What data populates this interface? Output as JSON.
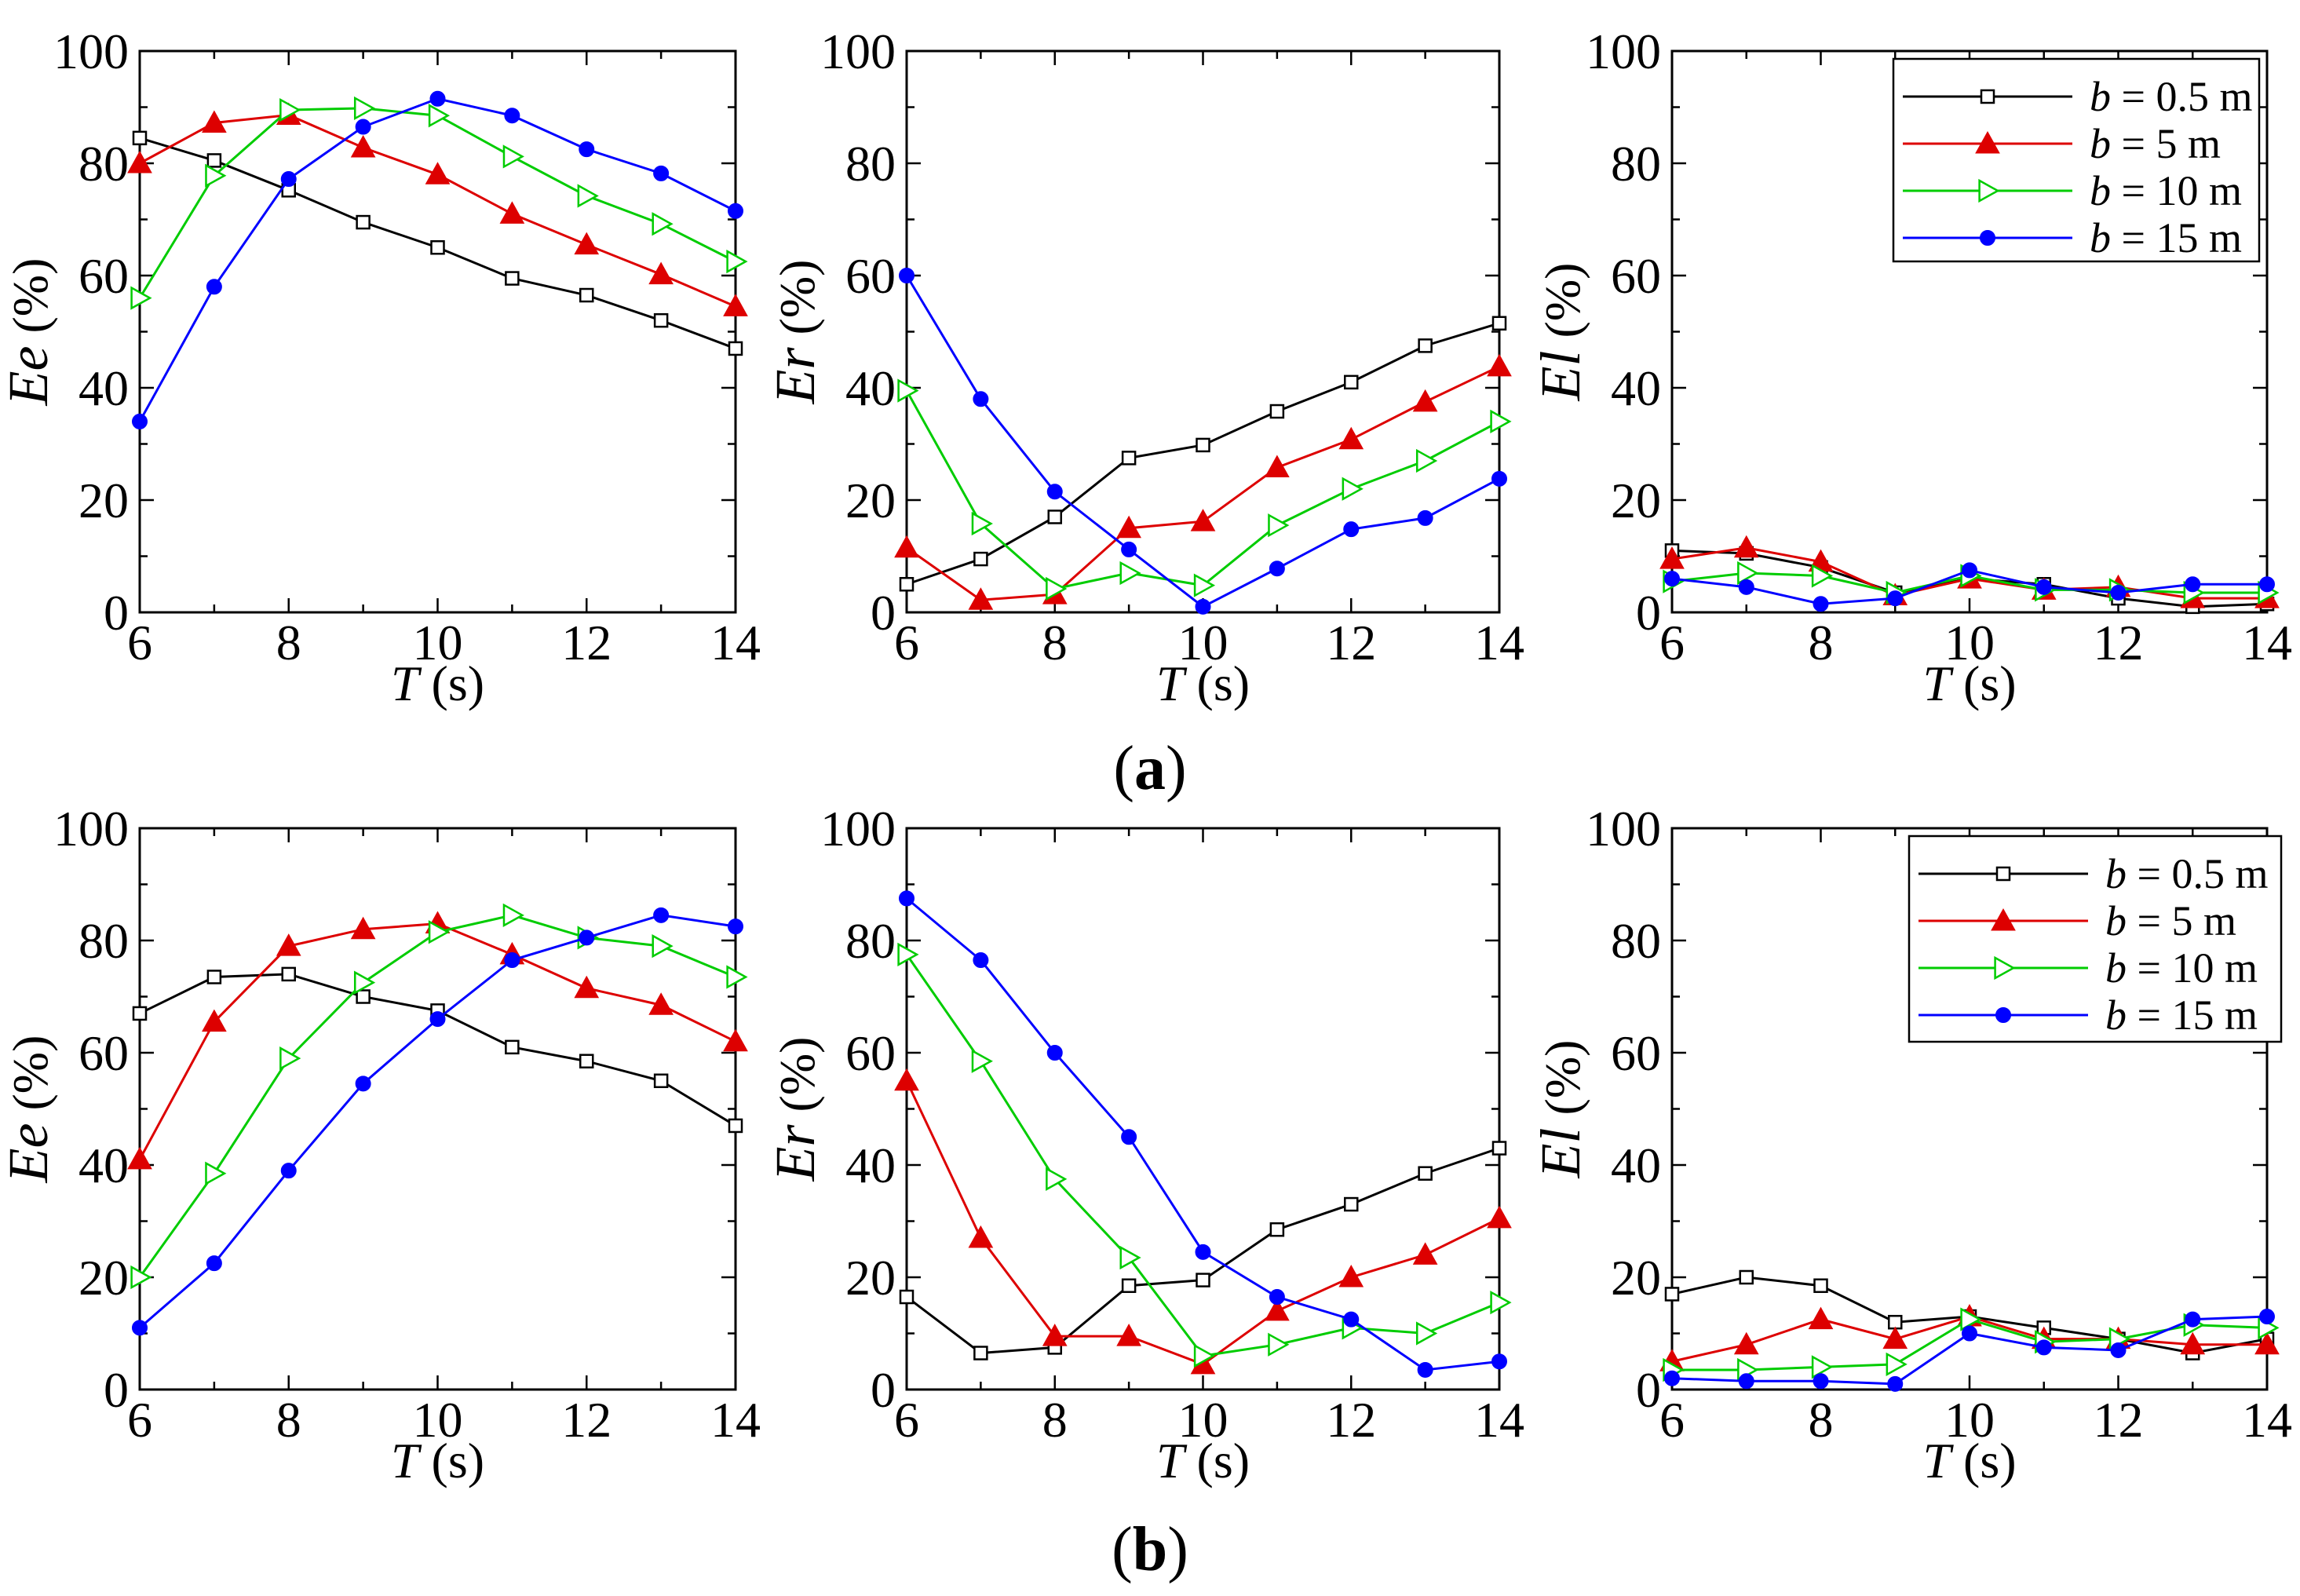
{
  "chart_data": [
    {
      "type": "line",
      "group": "a",
      "title": "",
      "xlabel_var": "T",
      "xlabel_unit": " (s)",
      "ylabel_var": "Ee",
      "ylabel_unit": " (%)",
      "xlim": [
        6,
        14
      ],
      "ylim": [
        0,
        100
      ],
      "x": [
        6,
        7,
        8,
        9,
        10,
        11,
        12,
        13,
        14
      ],
      "legend": false,
      "series": [
        {
          "name": "b = 0.5 m",
          "values": [
            84.5,
            80.5,
            75.2,
            69.5,
            65.0,
            59.5,
            56.5,
            52.0,
            47.0
          ]
        },
        {
          "name": "b = 5 m",
          "values": [
            80.0,
            87.2,
            88.6,
            82.8,
            78.0,
            71.0,
            65.5,
            60.2,
            54.5
          ]
        },
        {
          "name": "b = 10 m",
          "values": [
            56.0,
            77.8,
            89.5,
            89.8,
            88.5,
            81.2,
            74.2,
            69.2,
            62.5
          ]
        },
        {
          "name": "b = 15 m",
          "values": [
            34.0,
            58.0,
            77.2,
            86.5,
            91.5,
            88.5,
            82.5,
            78.2,
            71.5
          ]
        }
      ]
    },
    {
      "type": "line",
      "group": "a",
      "title": "",
      "xlabel_var": "T",
      "xlabel_unit": " (s)",
      "ylabel_var": "Er",
      "ylabel_unit": " (%)",
      "xlim": [
        6,
        14
      ],
      "ylim": [
        0,
        100
      ],
      "x": [
        6,
        7,
        8,
        9,
        10,
        11,
        12,
        13,
        14
      ],
      "legend": false,
      "series": [
        {
          "name": "b = 0.5 m",
          "values": [
            5.0,
            9.5,
            17.0,
            27.5,
            29.8,
            35.8,
            41.0,
            47.5,
            51.5
          ]
        },
        {
          "name": "b = 5 m",
          "values": [
            11.5,
            2.2,
            3.2,
            15.0,
            16.2,
            25.8,
            30.8,
            37.5,
            43.8
          ]
        },
        {
          "name": "b = 10 m",
          "values": [
            39.5,
            15.8,
            4.2,
            7.0,
            4.8,
            15.5,
            22.0,
            27.0,
            34.0
          ]
        },
        {
          "name": "b = 15 m",
          "values": [
            60.0,
            38.0,
            21.5,
            11.2,
            1.0,
            7.8,
            14.8,
            16.8,
            23.8
          ]
        }
      ]
    },
    {
      "type": "line",
      "group": "a",
      "title": "",
      "xlabel_var": "T",
      "xlabel_unit": " (s)",
      "ylabel_var": "El",
      "ylabel_unit": " (%)",
      "xlim": [
        6,
        14
      ],
      "ylim": [
        0,
        100
      ],
      "x": [
        6,
        7,
        8,
        9,
        10,
        11,
        12,
        13,
        14
      ],
      "legend": true,
      "series": [
        {
          "name": "b = 0.5 m",
          "values": [
            11.0,
            10.5,
            8.0,
            3.5,
            6.0,
            5.0,
            2.5,
            1.0,
            1.5
          ]
        },
        {
          "name": "b = 5 m",
          "values": [
            9.5,
            11.5,
            9.0,
            3.0,
            6.0,
            4.0,
            4.5,
            2.5,
            2.5
          ]
        },
        {
          "name": "b = 10 m",
          "values": [
            5.5,
            7.0,
            6.5,
            3.5,
            6.5,
            4.0,
            4.0,
            3.5,
            3.5
          ]
        },
        {
          "name": "b = 15 m",
          "values": [
            6.0,
            4.5,
            1.5,
            2.5,
            7.5,
            4.5,
            3.5,
            5.0,
            5.0
          ]
        }
      ]
    },
    {
      "type": "line",
      "group": "b",
      "title": "",
      "xlabel_var": "T",
      "xlabel_unit": " (s)",
      "ylabel_var": "Ee",
      "ylabel_unit": " (%)",
      "xlim": [
        6,
        14
      ],
      "ylim": [
        0,
        100
      ],
      "x": [
        6,
        7,
        8,
        9,
        10,
        11,
        12,
        13,
        14
      ],
      "legend": false,
      "series": [
        {
          "name": "b = 0.5 m",
          "values": [
            67.0,
            73.5,
            74.0,
            70.0,
            67.5,
            61.0,
            58.5,
            55.0,
            47.0
          ]
        },
        {
          "name": "b = 5 m",
          "values": [
            41.0,
            65.5,
            79.0,
            82.0,
            83.0,
            77.5,
            71.5,
            68.5,
            62.0
          ]
        },
        {
          "name": "b = 10 m",
          "values": [
            20.0,
            38.5,
            59.0,
            72.5,
            81.5,
            84.5,
            80.5,
            79.0,
            73.5
          ]
        },
        {
          "name": "b = 15 m",
          "values": [
            11.0,
            22.5,
            39.0,
            54.5,
            66.0,
            76.5,
            80.5,
            84.5,
            82.5
          ]
        }
      ]
    },
    {
      "type": "line",
      "group": "b",
      "title": "",
      "xlabel_var": "T",
      "xlabel_unit": " (s)",
      "ylabel_var": "Er",
      "ylabel_unit": " (%)",
      "xlim": [
        6,
        14
      ],
      "ylim": [
        0,
        100
      ],
      "x": [
        6,
        7,
        8,
        9,
        10,
        11,
        12,
        13,
        14
      ],
      "legend": false,
      "series": [
        {
          "name": "b = 0.5 m",
          "values": [
            16.5,
            6.5,
            7.5,
            18.5,
            19.5,
            28.5,
            33.0,
            38.5,
            43.0
          ]
        },
        {
          "name": "b = 5 m",
          "values": [
            55.0,
            27.0,
            9.5,
            9.5,
            4.5,
            14.0,
            20.0,
            24.0,
            30.5
          ]
        },
        {
          "name": "b = 10 m",
          "values": [
            77.5,
            58.5,
            37.5,
            23.5,
            6.0,
            8.0,
            11.0,
            10.0,
            15.5
          ]
        },
        {
          "name": "b = 15 m",
          "values": [
            87.5,
            76.5,
            60.0,
            45.0,
            24.5,
            16.5,
            12.5,
            3.5,
            5.0
          ]
        }
      ]
    },
    {
      "type": "line",
      "group": "b",
      "title": "",
      "xlabel_var": "T",
      "xlabel_unit": " (s)",
      "ylabel_var": "El",
      "ylabel_unit": " (%)",
      "xlim": [
        6,
        14
      ],
      "ylim": [
        0,
        100
      ],
      "x": [
        6,
        7,
        8,
        9,
        10,
        11,
        12,
        13,
        14
      ],
      "legend": true,
      "series": [
        {
          "name": "b = 0.5 m",
          "values": [
            17.0,
            20.0,
            18.5,
            12.0,
            13.0,
            11.0,
            9.0,
            6.5,
            9.0
          ]
        },
        {
          "name": "b = 5 m",
          "values": [
            5.0,
            8.0,
            12.5,
            9.0,
            13.0,
            9.0,
            9.0,
            8.0,
            8.0
          ]
        },
        {
          "name": "b = 10 m",
          "values": [
            3.5,
            3.5,
            4.0,
            4.5,
            12.5,
            8.5,
            9.0,
            11.5,
            11.0
          ]
        },
        {
          "name": "b = 15 m",
          "values": [
            2.0,
            1.5,
            1.5,
            1.0,
            10.0,
            7.5,
            7.0,
            12.5,
            13.0
          ]
        }
      ]
    }
  ],
  "legend_entries": [
    {
      "var": "b",
      "text": " = 0.5 m"
    },
    {
      "var": "b",
      "text": " = 5 m"
    },
    {
      "var": "b",
      "text": " = 10 m"
    },
    {
      "var": "b",
      "text": " = 15 m"
    }
  ],
  "series_styles": [
    {
      "color": "#000000",
      "marker": "open-square"
    },
    {
      "color": "#dd0000",
      "marker": "filled-triangle"
    },
    {
      "color": "#00cc00",
      "marker": "open-right-triangle"
    },
    {
      "color": "#0000ff",
      "marker": "filled-circle"
    }
  ],
  "panel_labels": {
    "a": "(a)",
    "b": "(b)"
  }
}
